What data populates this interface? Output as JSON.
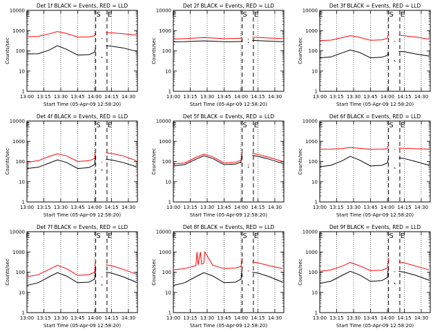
{
  "figure": {
    "common": {
      "ylabel": "Counts/sec",
      "xlabel": "Start Time (05-Apr-09 12:58:20)",
      "xticks": [
        "13:00",
        "13:15",
        "13:30",
        "13:45",
        "14:00",
        "14:15",
        "14:30"
      ],
      "yticks": [
        "1",
        "10",
        "100",
        "1000",
        "10000"
      ],
      "event_markers": [
        {
          "label": "E",
          "time": "12:59"
        },
        {
          "label": "S",
          "time": "14:01"
        },
        {
          "label": "E",
          "time": "14:11"
        }
      ],
      "colors": {
        "events": "#000000",
        "lld": "#ff0000",
        "axes": "#000000"
      }
    }
  },
  "chart_data": [
    {
      "type": "line",
      "panel": "1f",
      "title": "Det 1f BLACK = Events, RED = LLD",
      "xlabel": "Start Time (05-Apr-09 12:58:20)",
      "ylabel": "Counts/sec",
      "y_scale": "log",
      "ylim": [
        1,
        10000
      ],
      "xlim": [
        "13:00",
        "14:38"
      ],
      "grid": false,
      "series": [
        {
          "name": "Events",
          "color": "#000000",
          "x": [
            "13:00",
            "13:10",
            "13:20",
            "13:27",
            "13:35",
            "13:45",
            "13:55",
            "14:00",
            "14:01",
            "14:02",
            "14:06",
            "14:07",
            "14:08",
            "14:10",
            "14:15",
            "14:25",
            "14:37"
          ],
          "y": [
            70,
            72,
            110,
            180,
            120,
            62,
            65,
            85,
            140,
            null,
            50,
            45,
            null,
            180,
            170,
            140,
            95
          ]
        },
        {
          "name": "LLD",
          "color": "#ff0000",
          "x": [
            "13:00",
            "13:10",
            "13:20",
            "13:27",
            "13:35",
            "13:45",
            "13:55",
            "14:00",
            "14:01",
            "14:02",
            "14:06",
            "14:07",
            "14:08",
            "14:10",
            "14:15",
            "14:25",
            "14:37"
          ],
          "y": [
            500,
            520,
            700,
            900,
            720,
            480,
            490,
            560,
            850,
            null,
            420,
            400,
            null,
            800,
            780,
            700,
            600
          ]
        }
      ]
    },
    {
      "type": "line",
      "panel": "2f",
      "title": "Det 2f BLACK = Events, RED = LLD",
      "xlabel": "Start Time (05-Apr-09 12:58:20)",
      "ylabel": "Counts/sec",
      "y_scale": "log",
      "ylim": [
        1,
        10000
      ],
      "xlim": [
        "13:00",
        "14:38"
      ],
      "grid": false,
      "series": [
        {
          "name": "Events",
          "color": "#000000",
          "x": [
            "13:00",
            "13:10",
            "13:20",
            "13:27",
            "13:35",
            "13:45",
            "13:55",
            "14:00",
            "14:01",
            "14:02",
            "14:06",
            "14:07",
            "14:08",
            "14:10",
            "14:15",
            "14:25",
            "14:37"
          ],
          "y": [
            280,
            285,
            300,
            310,
            300,
            280,
            285,
            290,
            320,
            null,
            260,
            250,
            null,
            330,
            320,
            300,
            280
          ]
        },
        {
          "name": "LLD",
          "color": "#ff0000",
          "x": [
            "13:00",
            "13:10",
            "13:20",
            "13:27",
            "13:35",
            "13:45",
            "13:55",
            "14:00",
            "14:01",
            "14:02",
            "14:06",
            "14:07",
            "14:08",
            "14:10",
            "14:15",
            "14:25",
            "14:37"
          ],
          "y": [
            380,
            400,
            430,
            450,
            430,
            400,
            410,
            420,
            480,
            null,
            380,
            360,
            null,
            470,
            460,
            430,
            400
          ]
        }
      ]
    },
    {
      "type": "line",
      "panel": "3f",
      "title": "Det 3f BLACK = Events, RED = LLD",
      "xlabel": "Start Time (05-Apr-09 12:58:20)",
      "ylabel": "Counts/sec",
      "y_scale": "log",
      "ylim": [
        1,
        10000
      ],
      "xlim": [
        "13:00",
        "14:38"
      ],
      "grid": false,
      "series": [
        {
          "name": "Events",
          "color": "#000000",
          "x": [
            "13:00",
            "13:10",
            "13:20",
            "13:27",
            "13:35",
            "13:45",
            "13:55",
            "14:00",
            "14:01",
            "14:02",
            "14:06",
            "14:07",
            "14:08",
            "14:10",
            "14:15",
            "14:25",
            "14:37"
          ],
          "y": [
            45,
            50,
            80,
            110,
            85,
            45,
            48,
            60,
            90,
            null,
            35,
            30,
            null,
            95,
            90,
            70,
            55
          ]
        },
        {
          "name": "LLD",
          "color": "#ff0000",
          "x": [
            "13:00",
            "13:10",
            "13:20",
            "13:27",
            "13:35",
            "13:45",
            "13:55",
            "14:00",
            "14:01",
            "14:02",
            "14:06",
            "14:07",
            "14:08",
            "14:10",
            "14:15",
            "14:25",
            "14:37"
          ],
          "y": [
            320,
            340,
            450,
            560,
            470,
            330,
            350,
            420,
            700,
            null,
            300,
            290,
            null,
            600,
            560,
            480,
            380
          ]
        }
      ]
    },
    {
      "type": "line",
      "panel": "4f",
      "title": "Det 4f BLACK = Events, RED = LLD",
      "xlabel": "Start Time (05-Apr-09 12:58:20)",
      "ylabel": "Counts/sec",
      "y_scale": "log",
      "ylim": [
        1,
        10000
      ],
      "xlim": [
        "13:00",
        "14:38"
      ],
      "grid": false,
      "series": [
        {
          "name": "Events",
          "color": "#000000",
          "x": [
            "13:00",
            "13:10",
            "13:20",
            "13:27",
            "13:35",
            "13:45",
            "13:55",
            "14:00",
            "14:01",
            "14:02",
            "14:06",
            "14:07",
            "14:08",
            "14:10",
            "14:15",
            "14:25",
            "14:37"
          ],
          "y": [
            45,
            52,
            85,
            120,
            90,
            45,
            50,
            70,
            200,
            null,
            40,
            35,
            null,
            130,
            120,
            90,
            55
          ]
        },
        {
          "name": "LLD",
          "color": "#ff0000",
          "x": [
            "13:00",
            "13:10",
            "13:20",
            "13:27",
            "13:35",
            "13:45",
            "13:55",
            "14:00",
            "14:01",
            "14:02",
            "14:06",
            "14:07",
            "14:08",
            "14:10",
            "14:15",
            "14:25",
            "14:37"
          ],
          "y": [
            90,
            110,
            180,
            240,
            190,
            100,
            110,
            140,
            420,
            null,
            95,
            90,
            null,
            270,
            250,
            190,
            110
          ]
        }
      ]
    },
    {
      "type": "line",
      "panel": "5f",
      "title": "Det 5f BLACK = Events, RED = LLD",
      "xlabel": "Start Time (05-Apr-09 12:58:20)",
      "ylabel": "Counts/sec",
      "y_scale": "log",
      "ylim": [
        1,
        10000
      ],
      "xlim": [
        "13:00",
        "14:38"
      ],
      "grid": false,
      "series": [
        {
          "name": "Events",
          "color": "#000000",
          "x": [
            "13:00",
            "13:10",
            "13:20",
            "13:27",
            "13:35",
            "13:45",
            "13:55",
            "14:00",
            "14:01",
            "14:02",
            "14:06",
            "14:07",
            "14:08",
            "14:10",
            "14:15",
            "14:25",
            "14:37"
          ],
          "y": [
            60,
            70,
            130,
            190,
            140,
            70,
            75,
            95,
            280,
            null,
            55,
            50,
            null,
            200,
            180,
            130,
            80
          ]
        },
        {
          "name": "LLD",
          "color": "#ff0000",
          "x": [
            "13:00",
            "13:10",
            "13:20",
            "13:27",
            "13:35",
            "13:45",
            "13:55",
            "14:00",
            "14:01",
            "14:02",
            "14:06",
            "14:07",
            "14:08",
            "14:10",
            "14:15",
            "14:25",
            "14:37"
          ],
          "y": [
            75,
            85,
            160,
            230,
            170,
            85,
            90,
            115,
            340,
            null,
            70,
            65,
            null,
            250,
            225,
            160,
            100
          ]
        }
      ]
    },
    {
      "type": "line",
      "panel": "6f",
      "title": "Det 6f BLACK = Events, RED = LLD",
      "xlabel": "Start Time (05-Apr-09 12:58:20)",
      "ylabel": "Counts/sec",
      "y_scale": "log",
      "ylim": [
        1,
        10000
      ],
      "xlim": [
        "13:00",
        "14:38"
      ],
      "grid": false,
      "series": [
        {
          "name": "Events",
          "color": "#000000",
          "x": [
            "13:00",
            "13:10",
            "13:20",
            "13:27",
            "13:35",
            "13:45",
            "13:55",
            "14:00",
            "14:01",
            "14:02",
            "14:06",
            "14:07",
            "14:08",
            "14:10",
            "14:15",
            "14:25",
            "14:37"
          ],
          "y": [
            55,
            65,
            110,
            180,
            120,
            60,
            65,
            85,
            150,
            null,
            50,
            45,
            null,
            150,
            140,
            100,
            65
          ]
        },
        {
          "name": "LLD",
          "color": "#ff0000",
          "x": [
            "13:00",
            "13:10",
            "13:20",
            "13:27",
            "13:35",
            "13:45",
            "13:55",
            "14:00",
            "14:01",
            "14:02",
            "14:06",
            "14:07",
            "14:08",
            "14:10",
            "14:15",
            "14:25",
            "14:37"
          ],
          "y": [
            400,
            410,
            440,
            500,
            450,
            400,
            410,
            430,
            700,
            null,
            400,
            390,
            null,
            460,
            450,
            430,
            410
          ]
        }
      ]
    },
    {
      "type": "line",
      "panel": "7f",
      "title": "Det 7f BLACK = Events, RED = LLD",
      "xlabel": "Start Time (05-Apr-09 12:58:20)",
      "ylabel": "Counts/sec",
      "y_scale": "log",
      "ylim": [
        1,
        10000
      ],
      "xlim": [
        "13:00",
        "14:38"
      ],
      "grid": false,
      "series": [
        {
          "name": "Events",
          "color": "#000000",
          "x": [
            "13:00",
            "13:10",
            "13:20",
            "13:27",
            "13:35",
            "13:45",
            "13:55",
            "14:00",
            "14:01",
            "14:02",
            "14:06",
            "14:07",
            "14:08",
            "14:10",
            "14:15",
            "14:25",
            "14:37"
          ],
          "y": [
            22,
            30,
            60,
            95,
            65,
            30,
            32,
            45,
            150,
            null,
            25,
            22,
            null,
            100,
            90,
            60,
            32
          ]
        },
        {
          "name": "LLD",
          "color": "#ff0000",
          "x": [
            "13:00",
            "13:10",
            "13:20",
            "13:27",
            "13:35",
            "13:45",
            "13:55",
            "14:00",
            "14:01",
            "14:02",
            "14:06",
            "14:07",
            "14:08",
            "14:10",
            "14:15",
            "14:25",
            "14:37"
          ],
          "y": [
            60,
            75,
            140,
            220,
            150,
            70,
            75,
            100,
            420,
            null,
            60,
            55,
            null,
            230,
            210,
            140,
            80
          ]
        }
      ]
    },
    {
      "type": "line",
      "panel": "8f",
      "title": "Det 8f BLACK = Events, RED = LLD",
      "xlabel": "Start Time (05-Apr-09 12:58:20)",
      "ylabel": "Counts/sec",
      "y_scale": "log",
      "ylim": [
        1,
        10000
      ],
      "xlim": [
        "13:00",
        "14:38"
      ],
      "grid": false,
      "series": [
        {
          "name": "Events",
          "color": "#000000",
          "x": [
            "13:00",
            "13:10",
            "13:20",
            "13:27",
            "13:35",
            "13:45",
            "13:55",
            "14:00",
            "14:01",
            "14:02",
            "14:06",
            "14:07",
            "14:08",
            "14:10",
            "14:15",
            "14:25",
            "14:37"
          ],
          "y": [
            22,
            30,
            60,
            95,
            65,
            30,
            32,
            45,
            150,
            null,
            25,
            22,
            null,
            100,
            90,
            60,
            32
          ]
        },
        {
          "name": "LLD",
          "color": "#ff0000",
          "x": [
            "13:00",
            "13:10",
            "13:20",
            "13:21",
            "13:22",
            "13:24",
            "13:25",
            "13:27",
            "13:28",
            "13:35",
            "13:45",
            "13:55",
            "14:00",
            "14:01",
            "14:02",
            "14:06",
            "14:07",
            "14:08",
            "14:10",
            "14:15",
            "14:25",
            "14:37"
          ],
          "y": [
            130,
            150,
            210,
            1000,
            230,
            1000,
            250,
            280,
            1000,
            220,
            150,
            160,
            190,
            500,
            null,
            120,
            110,
            null,
            320,
            290,
            210,
            150
          ]
        }
      ]
    },
    {
      "type": "line",
      "panel": "9f",
      "title": "Det 9f BLACK = Events, RED = LLD",
      "xlabel": "Start Time (05-Apr-09 12:58:20)",
      "ylabel": "Counts/sec",
      "y_scale": "log",
      "ylim": [
        1,
        10000
      ],
      "xlim": [
        "13:00",
        "14:38"
      ],
      "grid": false,
      "series": [
        {
          "name": "Events",
          "color": "#000000",
          "x": [
            "13:00",
            "13:10",
            "13:20",
            "13:27",
            "13:35",
            "13:45",
            "13:55",
            "14:00",
            "14:01",
            "14:02",
            "14:06",
            "14:07",
            "14:08",
            "14:10",
            "14:15",
            "14:25",
            "14:37"
          ],
          "y": [
            28,
            36,
            70,
            110,
            75,
            35,
            38,
            55,
            180,
            null,
            30,
            25,
            null,
            110,
            100,
            70,
            40
          ]
        },
        {
          "name": "LLD",
          "color": "#ff0000",
          "x": [
            "13:00",
            "13:10",
            "13:20",
            "13:27",
            "13:35",
            "13:45",
            "13:55",
            "14:00",
            "14:01",
            "14:02",
            "14:06",
            "14:07",
            "14:08",
            "14:10",
            "14:15",
            "14:25",
            "14:37"
          ],
          "y": [
            110,
            130,
            200,
            300,
            210,
            120,
            125,
            160,
            500,
            null,
            110,
            100,
            null,
            320,
            290,
            200,
            130
          ]
        }
      ]
    }
  ]
}
